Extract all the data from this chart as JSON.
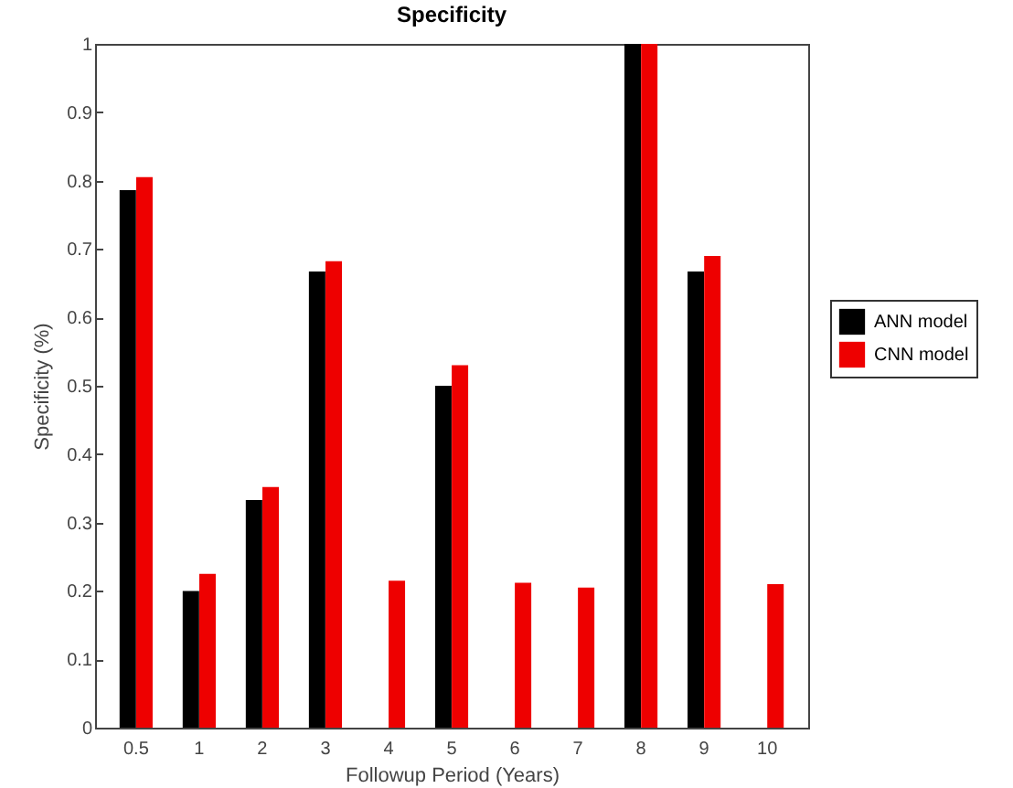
{
  "chart_data": {
    "type": "bar",
    "title": "Specificity",
    "xlabel": "Followup Period (Years)",
    "ylabel": "Specificity (%)",
    "categories": [
      "0.5",
      "1",
      "2",
      "3",
      "4",
      "5",
      "6",
      "7",
      "8",
      "9",
      "10"
    ],
    "series": [
      {
        "name": "ANN model",
        "color": "#000000",
        "values": [
          0.786,
          0.2,
          0.333,
          0.667,
          0,
          0.5,
          0,
          0,
          1,
          0.667,
          0
        ]
      },
      {
        "name": "CNN model",
        "color": "#ee0000",
        "values": [
          0.805,
          0.225,
          0.352,
          0.682,
          0.215,
          0.53,
          0.212,
          0.205,
          1,
          0.69,
          0.21
        ]
      }
    ],
    "ylim": [
      0,
      1
    ],
    "yticks": [
      0,
      0.1,
      0.2,
      0.3,
      0.4,
      0.5,
      0.6,
      0.7,
      0.8,
      0.9,
      1
    ],
    "grid": false,
    "legend": "right"
  }
}
